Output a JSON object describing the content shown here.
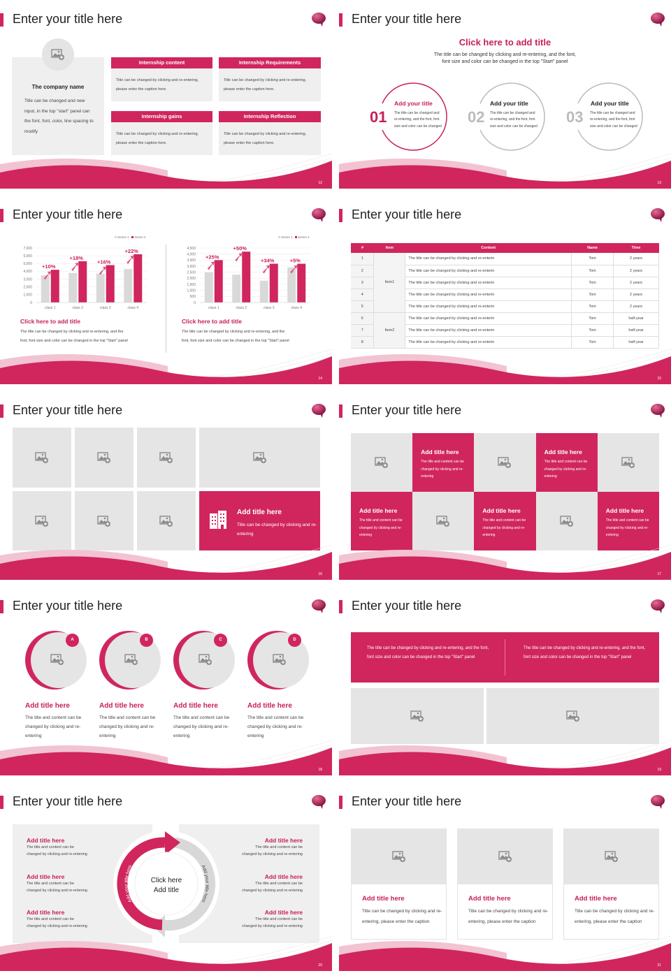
{
  "slides": [
    {
      "title": "Enter your title here",
      "page": "12"
    },
    {
      "title": "Enter your title here",
      "page": "13"
    },
    {
      "title": "Enter your title here",
      "page": "14"
    },
    {
      "title": "Enter your title here",
      "page": "15"
    },
    {
      "title": "Enter your title here",
      "page": "16"
    },
    {
      "title": "Enter your title here",
      "page": "17"
    },
    {
      "title": "Enter your title here",
      "page": "18"
    },
    {
      "title": "Enter your title here",
      "page": "19"
    },
    {
      "title": "Enter your title here",
      "page": "20"
    },
    {
      "title": "Enter your title here",
      "page": "21"
    }
  ],
  "colors": {
    "accent": "#d0265d",
    "light_gray": "#efefef",
    "placeholder_gray": "#e6e5e6",
    "logo": "#8a1545"
  },
  "s12": {
    "company_name": "The company name",
    "company_text": "Title can be changed and new input, in the top \"start\" panel can the font, font, color, line spacing to modify",
    "cards": [
      {
        "header": "Internship content",
        "text": "Title can be changed by clicking and re-entering, please enter the caption here."
      },
      {
        "header": "Internship Requirements",
        "text": "Title can be changed by clicking and re-entering, please enter the caption here."
      },
      {
        "header": "Internship gains",
        "text": "Title can be changed by clicking and re-entering, please enter the caption here."
      },
      {
        "header": "Internship Reflection",
        "text": "Title can be changed by clicking and re-entering, please enter the caption here."
      }
    ]
  },
  "s13": {
    "heading": "Click here to add title",
    "subtitle_1": "The title can be changed by clicking and re-entering, and the font,",
    "subtitle_2": "font size and color can be changed in the top \"Start\" panel",
    "items": [
      {
        "num": "01",
        "title": "Add your title",
        "text": "The title can be changed and re-entering, and the font, font size and color can be changed"
      },
      {
        "num": "02",
        "title": "Add your title",
        "text": "The title can be changed and re-entering, and the font, font size and color can be changed"
      },
      {
        "num": "03",
        "title": "Add your title",
        "text": "The title can be changed and re-entering, and the font, font size and color can be changed"
      }
    ]
  },
  "chart_data": [
    {
      "type": "bar",
      "categories": [
        "class 1",
        "class 2",
        "class 3",
        "class 4"
      ],
      "series": [
        {
          "name": "Series 1",
          "values": [
            3500,
            3800,
            3700,
            4300
          ],
          "color": "#d9d9d9"
        },
        {
          "name": "Series 2",
          "values": [
            4200,
            5300,
            4800,
            6200
          ],
          "color": "#d0265d"
        }
      ],
      "annotations": [
        "+10%",
        "+18%",
        "+16%",
        "+22%"
      ],
      "ylim": [
        0,
        7000
      ],
      "yticks": [
        "0",
        "1,000",
        "2,000",
        "3,000",
        "4,000",
        "5,000",
        "6,000",
        "7,000"
      ],
      "grid": true,
      "legend": "top-right"
    },
    {
      "type": "bar",
      "categories": [
        "class 1",
        "class 2",
        "class 3",
        "class 4"
      ],
      "series": [
        {
          "name": "Series 1",
          "values": [
            2500,
            2300,
            1800,
            2900
          ],
          "color": "#d9d9d9"
        },
        {
          "name": "Series 2",
          "values": [
            3500,
            4200,
            3200,
            3200
          ],
          "color": "#d0265d"
        }
      ],
      "annotations": [
        "+25%",
        "+50%",
        "+34%",
        "+5%"
      ],
      "ylim": [
        0,
        4500
      ],
      "yticks": [
        "0",
        "500",
        "1,000",
        "1,500",
        "2,000",
        "2,500",
        "3,000",
        "3,500",
        "4,000",
        "4,500"
      ],
      "grid": true,
      "legend": "top-right"
    }
  ],
  "s14": {
    "captions": [
      {
        "title": "Click here to add title",
        "text_1": "The title can be changed by clicking and re-entering, and the",
        "text_2": "font, font size and color can be changed in the top \"Start\" panel"
      },
      {
        "title": "Click here to add title",
        "text_1": "The title can be changed by clicking and re-entering, and the",
        "text_2": "font, font size and color can be changed in the top \"Start\" panel"
      }
    ]
  },
  "s15": {
    "headers": [
      "#",
      "Item",
      "Content",
      "Name",
      "Time"
    ],
    "rows": [
      {
        "num": "1",
        "item": "Item1",
        "content": "The title can be changed by clicking and re-enterin",
        "name": "Tom",
        "time": "2 years"
      },
      {
        "num": "2",
        "item": "Item1",
        "content": "The title can be changed by clicking and re-enterin",
        "name": "Tom",
        "time": "2 years"
      },
      {
        "num": "3",
        "item": "Item1",
        "content": "The title can be changed by clicking and re-enterin",
        "name": "Tom",
        "time": "2 years"
      },
      {
        "num": "4",
        "item": "Item1",
        "content": "The title can be changed by clicking and re-enterin",
        "name": "Tom",
        "time": "2 years"
      },
      {
        "num": "5",
        "item": "Item1",
        "content": "The title can be changed by clicking and re-enterin",
        "name": "Tom",
        "time": "2 years"
      },
      {
        "num": "6",
        "item": "Item2",
        "content": "The title can be changed by clicking and re-enterin",
        "name": "Tom",
        "time": "half-year"
      },
      {
        "num": "7",
        "item": "Item2",
        "content": "The title can be changed by clicking and re-enterin",
        "name": "Tom",
        "time": "half-year"
      },
      {
        "num": "8",
        "item": "Item2",
        "content": "The title can be changed by clicking and re-enterin",
        "name": "Tom",
        "time": "half-year"
      }
    ]
  },
  "s16": {
    "title": "Add title here",
    "text": "Title can be changed by clicking and re-entering"
  },
  "s17": {
    "title": "Add title here",
    "text": "The title and content can be changed by clicking and re-entering"
  },
  "s18": {
    "items": [
      {
        "badge": "A",
        "title": "Add title here",
        "text": "The title and content can be changed by clicking and re-entering"
      },
      {
        "badge": "B",
        "title": "Add title here",
        "text": "The title and content can be changed by clicking and re-entering"
      },
      {
        "badge": "C",
        "title": "Add title here",
        "text": "The title and content can be changed by clicking and re-entering"
      },
      {
        "badge": "D",
        "title": "Add title here",
        "text": "The title and content can be changed by clicking and re-entering"
      }
    ]
  },
  "s19": {
    "text_left": "The title can be changed by clicking and re-entering, and the font, font size and color can be changed in the top \"Start\" panel",
    "text_right": "The title can be changed by clicking and re-entering, and the font, font size and color can be changed in the top \"Start\" panel"
  },
  "s20": {
    "center_1": "Click here",
    "center_2": "Add title",
    "arc_left": "Add your title here",
    "arc_right": "Add your title here",
    "left_items": [
      {
        "title": "Add title here",
        "text_1": "The title and content can be",
        "text_2": "changed by clicking and re-entering"
      },
      {
        "title": "Add title here",
        "text_1": "The title and content can be",
        "text_2": "changed by clicking and re-entering"
      },
      {
        "title": "Add title here",
        "text_1": "The title and content can be",
        "text_2": "changed by clicking and re-entering"
      }
    ],
    "right_items": [
      {
        "title": "Add title here",
        "text_1": "The title and content can be",
        "text_2": "changed by clicking and re-entering"
      },
      {
        "title": "Add title here",
        "text_1": "The title and content can be",
        "text_2": "changed by clicking and re-entering"
      },
      {
        "title": "Add title here",
        "text_1": "The title and content can be",
        "text_2": "changed by clicking and re-entering"
      }
    ]
  },
  "s21": {
    "cards": [
      {
        "title": "Add title here",
        "text": "Title can be changed by clicking and re-entering, please enter the caption"
      },
      {
        "title": "Add title here",
        "text": "Title can be changed by clicking and re-entering, please enter the caption"
      },
      {
        "title": "Add title here",
        "text": "Title can be changed by clicking and re-entering, please enter the caption"
      }
    ]
  }
}
